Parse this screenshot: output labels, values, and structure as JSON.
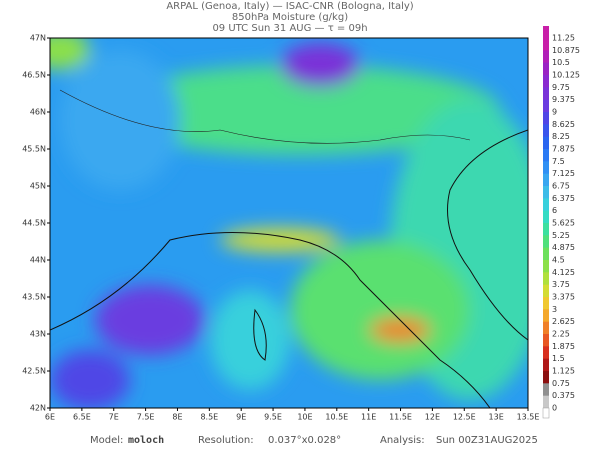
{
  "header": {
    "line1": "ARPAL (Genoa, Italy)  —  ISAC-CNR (Bologna, Italy)",
    "line2": "850hPa Moisture (g/kg)",
    "line3": "09 UTC Sun 31 AUG  —  τ = 09h"
  },
  "x_labels": [
    "6E",
    "6.5E",
    "7E",
    "7.5E",
    "8E",
    "8.5E",
    "9E",
    "9.5E",
    "10E",
    "10.5E",
    "11E",
    "11.5E",
    "12E",
    "12.5E",
    "13E",
    "13.5E"
  ],
  "y_labels": [
    "47N",
    "46.5N",
    "46N",
    "45.5N",
    "45N",
    "44.5N",
    "44N",
    "43.5N",
    "43N",
    "42.5N",
    "42N"
  ],
  "colorbar": {
    "labels": [
      "11.25",
      "10.875",
      "10.5",
      "10.125",
      "9.75",
      "9.375",
      "9",
      "8.625",
      "8.25",
      "7.875",
      "7.5",
      "7.125",
      "6.75",
      "6.375",
      "6",
      "5.625",
      "5.25",
      "4.875",
      "4.5",
      "4.125",
      "3.75",
      "3.375",
      "3",
      "2.625",
      "2.25",
      "1.875",
      "1.5",
      "1.125",
      "0.75",
      "0.375",
      "0"
    ],
    "colors": [
      "#c81fa8",
      "#b01fb8",
      "#9a23c4",
      "#8a2ad0",
      "#7a33d8",
      "#6a3ce0",
      "#5046e6",
      "#3a55ec",
      "#2a66f0",
      "#2a7af4",
      "#3090f4",
      "#38a6f0",
      "#3cbce8",
      "#38d0dc",
      "#34dcc4",
      "#3ce0a0",
      "#50e07c",
      "#6ce05c",
      "#8ce048",
      "#b0e03c",
      "#d4dc34",
      "#f0c830",
      "#f4a82c",
      "#f08028",
      "#e85824",
      "#d83020",
      "#b01818",
      "#8c1010",
      "#909090",
      "#c8c8c8"
    ]
  },
  "footer": {
    "model_label": "Model:",
    "model": "moloch",
    "resolution_label": "Resolution:",
    "resolution": "0.037°x0.028°",
    "analysis_label": "Analysis:",
    "analysis": "Sun 00Z31AUG2025"
  }
}
